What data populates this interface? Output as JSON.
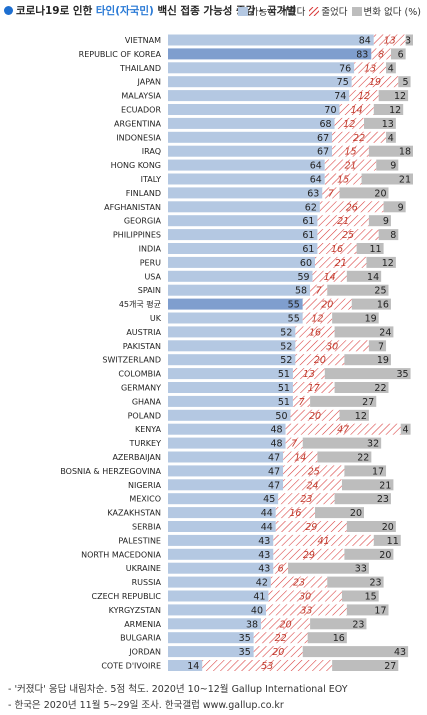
{
  "header": {
    "title_prefix": "코로나19로 인한 ",
    "title_accent": "타인(자국민)",
    "title_suffix": " 백신 접종 가능성 증감 - 국가별",
    "legend_increase": "가능성 커졌다",
    "legend_decrease": "줄었다",
    "legend_nochange": "변화 없다 (%)"
  },
  "colors": {
    "increase": "#b4c8e2",
    "increase_highlight": "#7f9ece",
    "decrease_hatch": "#d83a3a",
    "decrease_text": "#c0392b",
    "nochange": "#bdbdbd",
    "accent": "#1e6fd0"
  },
  "chart_data": {
    "type": "bar",
    "stacked": true,
    "orientation": "horizontal",
    "series_names": [
      "가능성 커졌다",
      "줄었다",
      "변화 없다 (%)"
    ],
    "rows": [
      {
        "label": "VIETNAM",
        "values": [
          84,
          13,
          3
        ]
      },
      {
        "label": "REPUBLIC OF KOREA",
        "values": [
          83,
          8,
          6
        ],
        "highlight": true
      },
      {
        "label": "THAILAND",
        "values": [
          76,
          13,
          4
        ]
      },
      {
        "label": "JAPAN",
        "values": [
          75,
          19,
          5
        ]
      },
      {
        "label": "MALAYSIA",
        "values": [
          74,
          12,
          12
        ]
      },
      {
        "label": "ECUADOR",
        "values": [
          70,
          14,
          12
        ]
      },
      {
        "label": "ARGENTINA",
        "values": [
          68,
          12,
          13
        ]
      },
      {
        "label": "INDONESIA",
        "values": [
          67,
          22,
          4
        ]
      },
      {
        "label": "IRAQ",
        "values": [
          67,
          15,
          18
        ]
      },
      {
        "label": "HONG KONG",
        "values": [
          64,
          21,
          9
        ]
      },
      {
        "label": "ITALY",
        "values": [
          64,
          15,
          21
        ]
      },
      {
        "label": "FINLAND",
        "values": [
          63,
          7,
          20
        ]
      },
      {
        "label": "AFGHANISTAN",
        "values": [
          62,
          26,
          9
        ]
      },
      {
        "label": "GEORGIA",
        "values": [
          61,
          21,
          9
        ]
      },
      {
        "label": "PHILIPPINES",
        "values": [
          61,
          25,
          8
        ]
      },
      {
        "label": "INDIA",
        "values": [
          61,
          16,
          11
        ]
      },
      {
        "label": "PERU",
        "values": [
          60,
          21,
          12
        ]
      },
      {
        "label": "USA",
        "values": [
          59,
          14,
          14
        ]
      },
      {
        "label": "SPAIN",
        "values": [
          58,
          7,
          25
        ]
      },
      {
        "label": "45개국 평균",
        "values": [
          55,
          20,
          16
        ],
        "highlight": true
      },
      {
        "label": "UK",
        "values": [
          55,
          12,
          19
        ]
      },
      {
        "label": "AUSTRIA",
        "values": [
          52,
          16,
          24
        ]
      },
      {
        "label": "PAKISTAN",
        "values": [
          52,
          30,
          7
        ]
      },
      {
        "label": "SWITZERLAND",
        "values": [
          52,
          20,
          19
        ]
      },
      {
        "label": "COLOMBIA",
        "values": [
          51,
          13,
          35
        ]
      },
      {
        "label": "GERMANY",
        "values": [
          51,
          17,
          22
        ]
      },
      {
        "label": "GHANA",
        "values": [
          51,
          7,
          27
        ]
      },
      {
        "label": "POLAND",
        "values": [
          50,
          20,
          12
        ]
      },
      {
        "label": "KENYA",
        "values": [
          48,
          47,
          4
        ]
      },
      {
        "label": "TURKEY",
        "values": [
          48,
          7,
          32
        ]
      },
      {
        "label": "AZERBAIJAN",
        "values": [
          47,
          14,
          22
        ]
      },
      {
        "label": "BOSNIA & HERZEGOVINA",
        "values": [
          47,
          25,
          17
        ]
      },
      {
        "label": "NIGERIA",
        "values": [
          47,
          24,
          21
        ]
      },
      {
        "label": "MEXICO",
        "values": [
          45,
          23,
          23
        ]
      },
      {
        "label": "KAZAKHSTAN",
        "values": [
          44,
          16,
          20
        ]
      },
      {
        "label": "SERBIA",
        "values": [
          44,
          29,
          20
        ]
      },
      {
        "label": "PALESTINE",
        "values": [
          43,
          41,
          11
        ]
      },
      {
        "label": "NORTH MACEDONIA",
        "values": [
          43,
          29,
          20
        ]
      },
      {
        "label": "UKRAINE",
        "values": [
          43,
          6,
          33
        ]
      },
      {
        "label": "RUSSIA",
        "values": [
          42,
          23,
          23
        ]
      },
      {
        "label": "CZECH REPUBLIC",
        "values": [
          41,
          30,
          15
        ]
      },
      {
        "label": "KYRGYZSTAN",
        "values": [
          40,
          33,
          17
        ]
      },
      {
        "label": "ARMENIA",
        "values": [
          38,
          20,
          23
        ]
      },
      {
        "label": "BULGARIA",
        "values": [
          35,
          22,
          16
        ]
      },
      {
        "label": "JORDAN",
        "values": [
          35,
          20,
          43
        ]
      },
      {
        "label": "COTE D'IVOIRE",
        "values": [
          14,
          53,
          27
        ]
      }
    ]
  },
  "footer": {
    "note1": "- '커졌다' 응답 내림차순. 5점 척도. 2020년 10~12월 Gallup International EOY",
    "note2": "- 한국은 2020년 11월 5~29일 조사. 한국갤럽 www.gallup.co.kr"
  }
}
